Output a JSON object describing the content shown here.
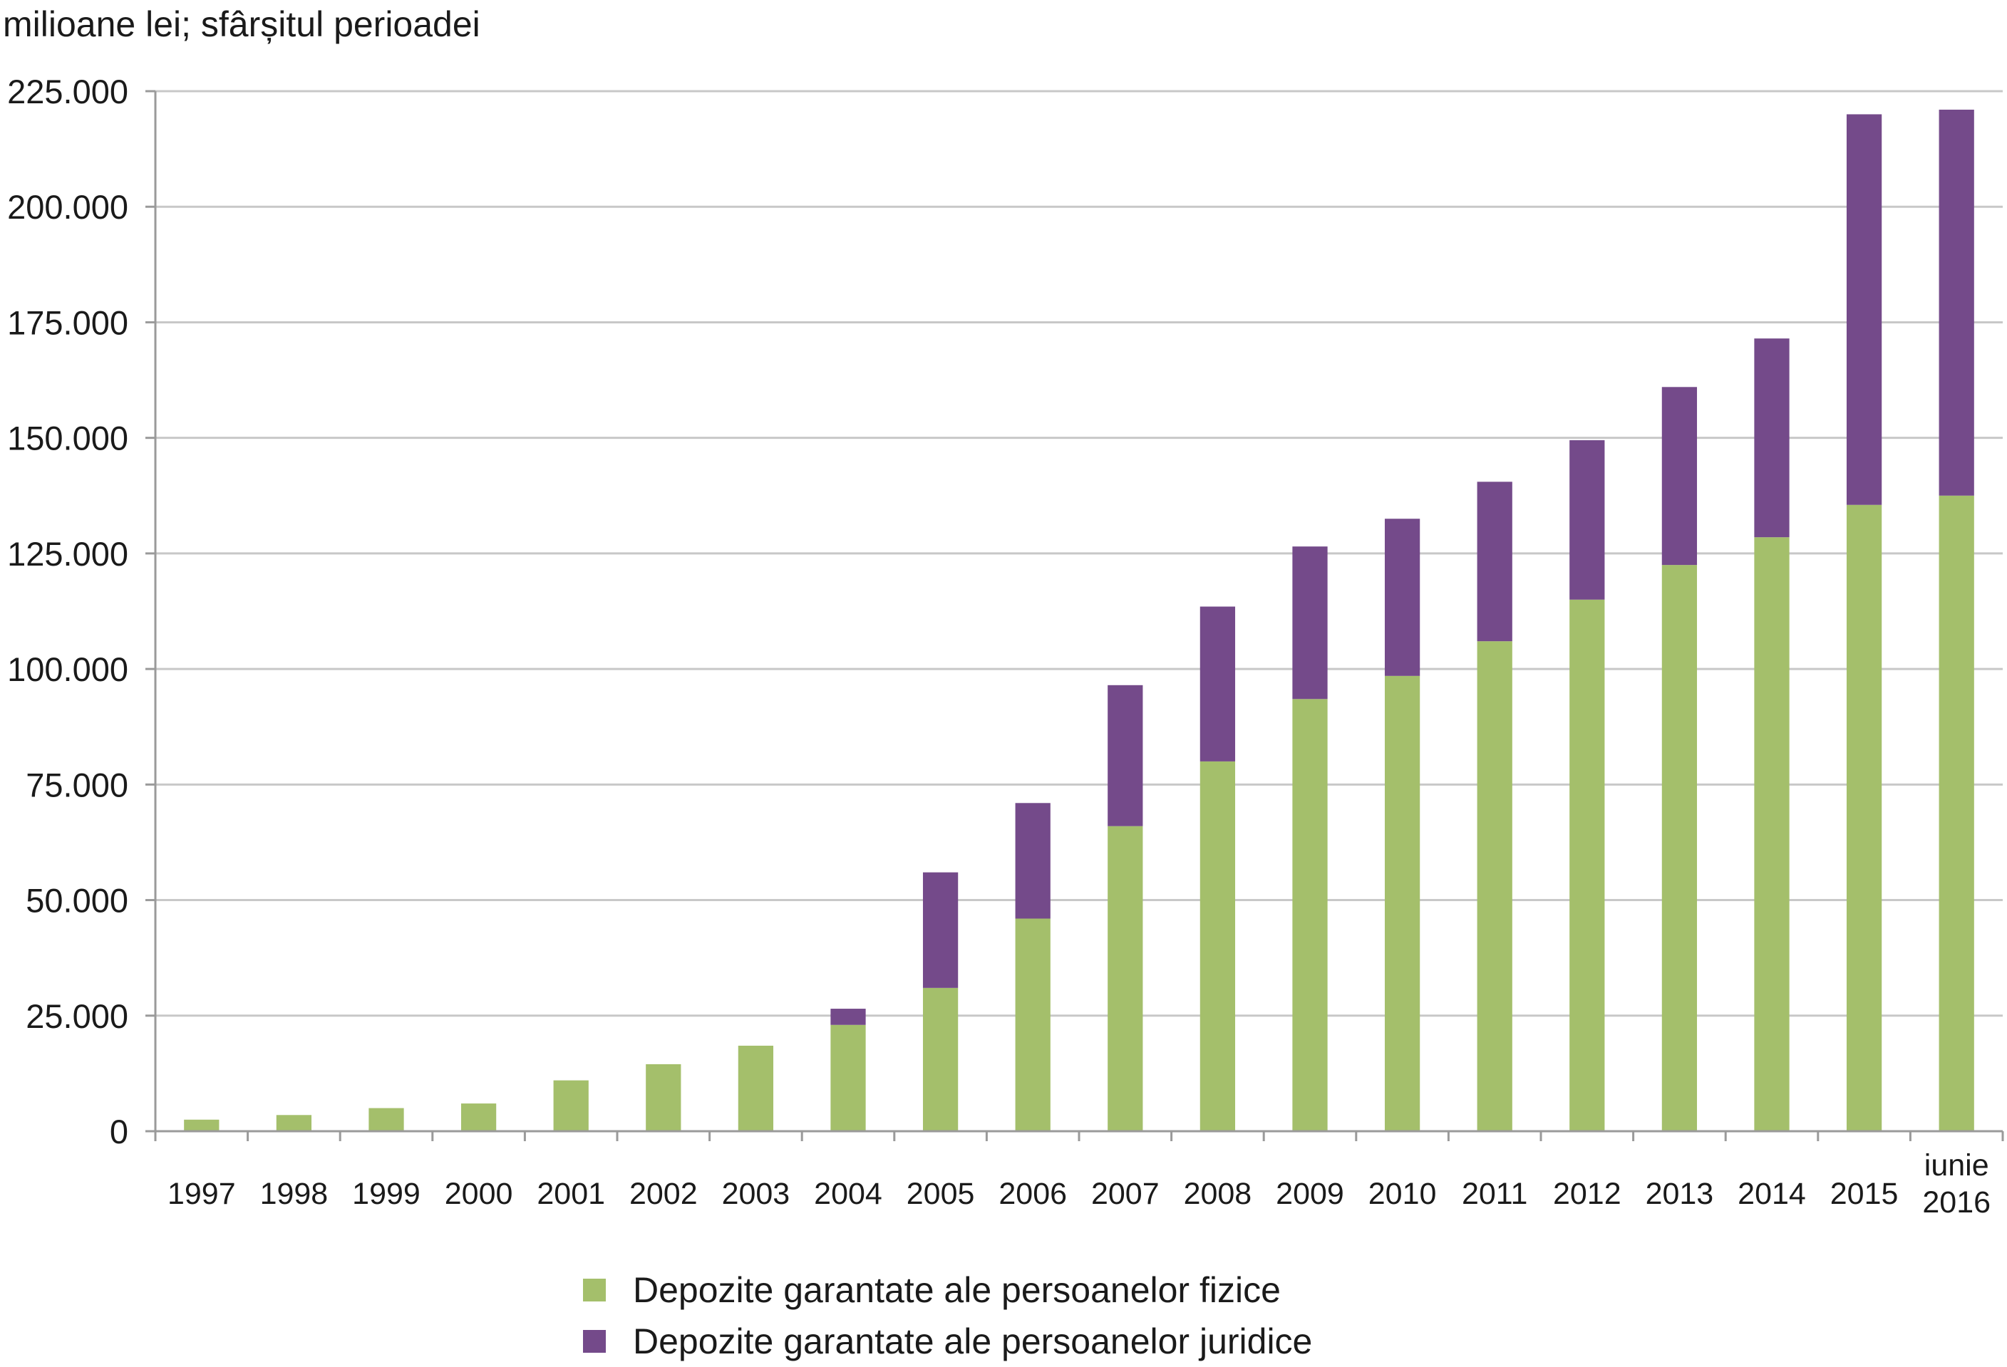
{
  "chart_data": {
    "type": "bar",
    "stacked": true,
    "y_unit_label": "milioane lei; sfârșitul perioadei",
    "categories": [
      [
        "1997"
      ],
      [
        "1998"
      ],
      [
        "1999"
      ],
      [
        "2000"
      ],
      [
        "2001"
      ],
      [
        "2002"
      ],
      [
        "2003"
      ],
      [
        "2004"
      ],
      [
        "2005"
      ],
      [
        "2006"
      ],
      [
        "2007"
      ],
      [
        "2008"
      ],
      [
        "2009"
      ],
      [
        "2010"
      ],
      [
        "2011"
      ],
      [
        "2012"
      ],
      [
        "2013"
      ],
      [
        "2014"
      ],
      [
        "2015"
      ],
      [
        "iunie",
        "2016"
      ]
    ],
    "series": [
      {
        "name": "Depozite garantate ale persoanelor fizice",
        "color": "#a4bf6b",
        "values": [
          2500,
          3500,
          5000,
          6000,
          11000,
          14500,
          18500,
          23000,
          31000,
          46000,
          66000,
          80000,
          93500,
          98500,
          106000,
          115000,
          122500,
          128500,
          135500,
          137500
        ]
      },
      {
        "name": "Depozite garantate ale persoanelor juridice",
        "color": "#744a8a",
        "values": [
          0,
          0,
          0,
          0,
          0,
          0,
          0,
          3500,
          25000,
          25000,
          30500,
          33500,
          33000,
          34000,
          34500,
          34500,
          38500,
          43000,
          84500,
          83500
        ]
      }
    ],
    "ylim": [
      0,
      225000
    ],
    "yticks": [
      0,
      25000,
      50000,
      75000,
      100000,
      125000,
      150000,
      175000,
      200000,
      225000
    ],
    "ytick_labels": [
      "0",
      "25.000",
      "50.000",
      "75.000",
      "100.000",
      "125.000",
      "150.000",
      "175.000",
      "200.000",
      "225.000"
    ],
    "grid": true,
    "legend_position": "bottom-center"
  }
}
